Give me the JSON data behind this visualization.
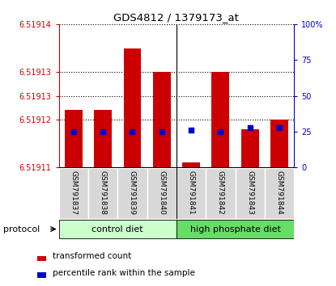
{
  "title": "GDS4812 / 1379173_at",
  "samples": [
    "GSM791837",
    "GSM791838",
    "GSM791839",
    "GSM791840",
    "GSM791841",
    "GSM791842",
    "GSM791843",
    "GSM791844"
  ],
  "transformed_counts": [
    6.519122,
    6.519122,
    6.519135,
    6.51913,
    6.519111,
    6.51913,
    6.519118,
    6.51912
  ],
  "percentile_ranks": [
    25,
    25,
    25,
    25,
    26,
    25,
    28,
    28
  ],
  "ylim_left": [
    6.51911,
    6.51914
  ],
  "ylim_right": [
    0,
    100
  ],
  "left_tick_positions": [
    6.51911,
    6.51912,
    6.519125,
    6.51913,
    6.51914
  ],
  "left_tick_labels": [
    "6.51911",
    "6.51912",
    "6.51913",
    "6.51913",
    "6.51914"
  ],
  "right_tick_positions": [
    0,
    25,
    50,
    75,
    100
  ],
  "right_tick_labels": [
    "0",
    "25",
    "50",
    "75",
    "100%"
  ],
  "group_ctrl_label": "control diet",
  "group_hp_label": "high phosphate diet",
  "group_ctrl_color": "#ccffcc",
  "group_hp_color": "#66dd66",
  "protocol_label": "protocol",
  "bar_color": "#cc0000",
  "dot_color": "#0000cc",
  "bar_width": 0.6,
  "left_axis_color": "#cc0000",
  "right_axis_color": "#0000cc",
  "legend_red_label": "transformed count",
  "legend_blue_label": "percentile rank within the sample",
  "fig_width": 4.15,
  "fig_height": 3.54
}
